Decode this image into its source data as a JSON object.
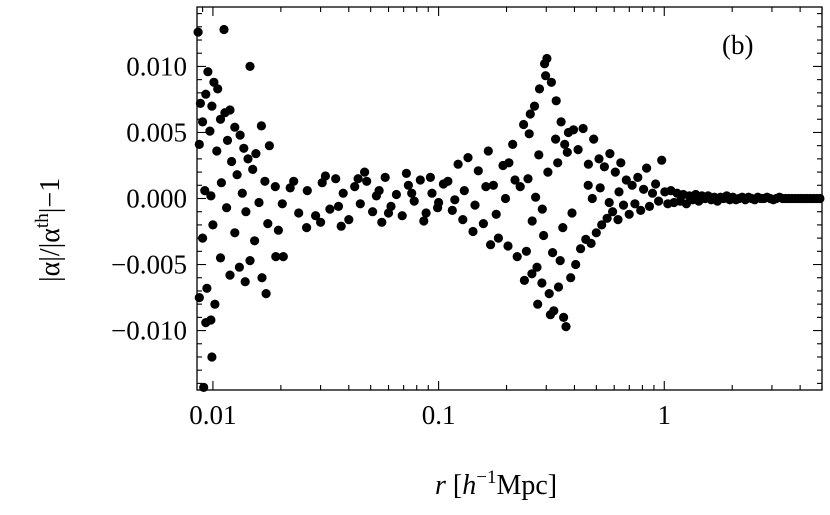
{
  "chart_data": {
    "type": "scatter",
    "panel_label": "(b)",
    "xscale": "log",
    "xlim": [
      0.0085,
      5.0
    ],
    "ylim": [
      -0.0145,
      0.0145
    ],
    "grid": false,
    "xlabel": {
      "var": "r",
      "pre": " [",
      "h": "h",
      "exp": "−1",
      "post": "Mpc]"
    },
    "ylabel": {
      "part1": "|α|/|α",
      "sup": "th",
      "part2": "|−1"
    },
    "x_ticks": [
      {
        "value": 0.01,
        "label": "0.01"
      },
      {
        "value": 0.1,
        "label": "0.1"
      },
      {
        "value": 1,
        "label": "1"
      }
    ],
    "y_ticks": [
      {
        "value": 0.01,
        "label": "0.010"
      },
      {
        "value": 0.005,
        "label": "0.005"
      },
      {
        "value": 0.0,
        "label": "0.000"
      },
      {
        "value": -0.005,
        "label": "−0.005"
      },
      {
        "value": -0.01,
        "label": "−0.010"
      }
    ],
    "series": [
      {
        "points": [
          [
            0.0086,
            0.0126
          ],
          [
            0.0112,
            0.0128
          ],
          [
            0.0095,
            0.0096
          ],
          [
            0.0101,
            0.0088
          ],
          [
            0.0146,
            0.01
          ],
          [
            0.0093,
            0.0079
          ],
          [
            0.0105,
            0.0083
          ],
          [
            0.0088,
            0.0072
          ],
          [
            0.0099,
            0.007
          ],
          [
            0.0113,
            0.0065
          ],
          [
            0.0119,
            0.0067
          ],
          [
            0.0108,
            0.006
          ],
          [
            0.0132,
            0.0048
          ],
          [
            0.0125,
            0.0054
          ],
          [
            0.009,
            0.0058
          ],
          [
            0.0097,
            0.0051
          ],
          [
            0.0164,
            0.0055
          ],
          [
            0.0178,
            0.004
          ],
          [
            0.0155,
            0.0034
          ],
          [
            0.0104,
            0.0036
          ],
          [
            0.0116,
            0.0044
          ],
          [
            0.0143,
            0.003
          ],
          [
            0.0137,
            0.0038
          ],
          [
            0.0087,
            0.0041
          ],
          [
            0.0121,
            0.0028
          ],
          [
            0.0092,
            0.0006
          ],
          [
            0.0109,
            0.0012
          ],
          [
            0.0128,
            0.0018
          ],
          [
            0.015,
            0.0022
          ],
          [
            0.017,
            0.0013
          ],
          [
            0.0098,
            0.0002
          ],
          [
            0.0135,
            0.0004
          ],
          [
            0.016,
            -0.0003
          ],
          [
            0.0189,
            0.0009
          ],
          [
            0.0203,
            -0.0004
          ],
          [
            0.022,
            0.0008
          ],
          [
            0.0115,
            -0.0007
          ],
          [
            0.014,
            -0.001
          ],
          [
            0.01,
            -0.002
          ],
          [
            0.0125,
            -0.0026
          ],
          [
            0.0153,
            -0.0032
          ],
          [
            0.0175,
            -0.0019
          ],
          [
            0.0195,
            -0.0024
          ],
          [
            0.009,
            -0.003
          ],
          [
            0.0108,
            -0.0045
          ],
          [
            0.0131,
            -0.0052
          ],
          [
            0.0146,
            -0.0047
          ],
          [
            0.0165,
            -0.006
          ],
          [
            0.0119,
            -0.0058
          ],
          [
            0.0094,
            -0.0068
          ],
          [
            0.0087,
            -0.0075
          ],
          [
            0.0102,
            -0.008
          ],
          [
            0.0139,
            -0.0063
          ],
          [
            0.0172,
            -0.0072
          ],
          [
            0.0098,
            -0.0092
          ],
          [
            0.0093,
            -0.0094
          ],
          [
            0.0099,
            -0.012
          ],
          [
            0.0091,
            -0.0143
          ],
          [
            0.0205,
            -0.0044
          ],
          [
            0.019,
            -0.0044
          ],
          [
            0.0228,
            0.0013
          ],
          [
            0.024,
            -0.0011
          ],
          [
            0.0262,
            0.0006
          ],
          [
            0.0285,
            -0.0013
          ],
          [
            0.0305,
            0.0012
          ],
          [
            0.033,
            -0.0008
          ],
          [
            0.035,
            0.0015
          ],
          [
            0.0378,
            0.0004
          ],
          [
            0.04,
            -0.0016
          ],
          [
            0.0425,
            0.0009
          ],
          [
            0.045,
            -0.0004
          ],
          [
            0.048,
            0.0013
          ],
          [
            0.051,
            -0.001
          ],
          [
            0.0545,
            0.0006
          ],
          [
            0.058,
            0.0016
          ],
          [
            0.0615,
            -0.0006
          ],
          [
            0.065,
            0.0003
          ],
          [
            0.069,
            -0.0013
          ],
          [
            0.0735,
            0.001
          ],
          [
            0.078,
            -0.0002
          ],
          [
            0.083,
            0.0014
          ],
          [
            0.088,
            -0.0011
          ],
          [
            0.0935,
            0.0004
          ],
          [
            0.099,
            -0.0007
          ],
          [
            0.105,
            0.0011
          ],
          [
            0.037,
            -0.0021
          ],
          [
            0.047,
            0.002
          ],
          [
            0.056,
            -0.0018
          ],
          [
            0.072,
            0.0019
          ],
          [
            0.086,
            -0.0017
          ],
          [
            0.026,
            -0.0022
          ],
          [
            0.03,
            -0.0018
          ],
          [
            0.0315,
            0.0017
          ],
          [
            0.036,
            -0.0006
          ],
          [
            0.044,
            0.0015
          ],
          [
            0.053,
            0.0002
          ],
          [
            0.06,
            -0.0011
          ],
          [
            0.076,
            0.0004
          ],
          [
            0.092,
            0.0016
          ],
          [
            0.1,
            -0.0003
          ],
          [
            0.11,
            0.0013
          ],
          [
            0.115,
            -0.0009
          ],
          [
            0.122,
            0.0026
          ],
          [
            0.128,
            -0.0016
          ],
          [
            0.135,
            0.0031
          ],
          [
            0.142,
            -0.0025
          ],
          [
            0.15,
            0.0021
          ],
          [
            0.158,
            -0.0019
          ],
          [
            0.166,
            0.0036
          ],
          [
            0.175,
            0.001
          ],
          [
            0.184,
            -0.003
          ],
          [
            0.193,
            0.0025
          ],
          [
            0.203,
            -0.0036
          ],
          [
            0.213,
            0.0041
          ],
          [
            0.223,
            -0.0044
          ],
          [
            0.118,
            -0.0001
          ],
          [
            0.13,
            0.0006
          ],
          [
            0.145,
            -0.0005
          ],
          [
            0.162,
            0.0009
          ],
          [
            0.18,
            -0.0012
          ],
          [
            0.198,
            0.0
          ],
          [
            0.218,
            0.0014
          ],
          [
            0.205,
            0.0027
          ],
          [
            0.17,
            -0.0035
          ],
          [
            0.23,
            0.0009
          ],
          [
            0.238,
            0.0056
          ],
          [
            0.245,
            -0.004
          ],
          [
            0.252,
            0.0049
          ],
          [
            0.259,
            -0.0057
          ],
          [
            0.266,
            0.007
          ],
          [
            0.273,
            -0.0052
          ],
          [
            0.28,
            0.0083
          ],
          [
            0.287,
            -0.0064
          ],
          [
            0.295,
            0.0102
          ],
          [
            0.302,
            0.0106
          ],
          [
            0.309,
            -0.0072
          ],
          [
            0.316,
            0.0088
          ],
          [
            0.324,
            -0.0085
          ],
          [
            0.332,
            0.0074
          ],
          [
            0.34,
            -0.0067
          ],
          [
            0.349,
            0.0058
          ],
          [
            0.358,
            -0.009
          ],
          [
            0.367,
            -0.0097
          ],
          [
            0.376,
            0.005
          ],
          [
            0.385,
            -0.006
          ],
          [
            0.249,
            0.0015
          ],
          [
            0.26,
            -0.0017
          ],
          [
            0.278,
            0.0033
          ],
          [
            0.292,
            -0.0028
          ],
          [
            0.305,
            0.002
          ],
          [
            0.32,
            -0.0041
          ],
          [
            0.337,
            0.0027
          ],
          [
            0.355,
            -0.0022
          ],
          [
            0.372,
            0.0035
          ],
          [
            0.39,
            -0.0011
          ],
          [
            0.24,
            -0.0062
          ],
          [
            0.255,
            0.0064
          ],
          [
            0.275,
            -0.008
          ],
          [
            0.298,
            0.0093
          ],
          [
            0.313,
            -0.0088
          ],
          [
            0.33,
            0.0045
          ],
          [
            0.346,
            -0.0047
          ],
          [
            0.362,
            0.0041
          ],
          [
            0.269,
            0.0001
          ],
          [
            0.288,
            -0.0008
          ],
          [
            0.396,
            0.0052
          ],
          [
            0.405,
            -0.005
          ],
          [
            0.415,
            0.0037
          ],
          [
            0.426,
            -0.0038
          ],
          [
            0.437,
            0.0053
          ],
          [
            0.449,
            -0.0031
          ],
          [
            0.461,
            0.0026
          ],
          [
            0.474,
            -0.0034
          ],
          [
            0.487,
            0.0045
          ],
          [
            0.5,
            -0.0026
          ],
          [
            0.514,
            0.003
          ],
          [
            0.528,
            -0.002
          ],
          [
            0.543,
            0.0024
          ],
          [
            0.558,
            -0.0015
          ],
          [
            0.574,
            0.0034
          ],
          [
            0.59,
            -0.001
          ],
          [
            0.607,
            0.002
          ],
          [
            0.624,
            -0.0016
          ],
          [
            0.642,
            0.0027
          ],
          [
            0.66,
            -0.0005
          ],
          [
            0.679,
            0.0014
          ],
          [
            0.699,
            -0.0012
          ],
          [
            0.72,
            0.001
          ],
          [
            0.741,
            -0.0004
          ],
          [
            0.763,
            0.0016
          ],
          [
            0.786,
            -0.0009
          ],
          [
            0.81,
            0.0007
          ],
          [
            0.835,
            0.0023
          ],
          [
            0.86,
            -0.0006
          ],
          [
            0.887,
            0.0004
          ],
          [
            0.915,
            0.0011
          ],
          [
            0.944,
            -0.0002
          ],
          [
            0.974,
            0.0029
          ],
          [
            1.005,
            0.0005
          ],
          [
            1.037,
            -0.0004
          ],
          [
            0.46,
            0.001
          ],
          [
            0.48,
            0.0
          ],
          [
            0.52,
            0.0008
          ],
          [
            0.57,
            -0.0003
          ],
          [
            0.63,
            0.0005
          ],
          [
            1.07,
            0.0006
          ],
          [
            1.104,
            -0.0003
          ],
          [
            1.14,
            0.0004
          ],
          [
            1.176,
            -0.0002
          ],
          [
            1.214,
            0.0003
          ],
          [
            1.253,
            -0.0004
          ],
          [
            1.293,
            0.0002
          ],
          [
            1.335,
            -0.0001
          ],
          [
            1.378,
            0.0003
          ],
          [
            1.422,
            -0.0002
          ],
          [
            1.468,
            0.0002
          ],
          [
            1.515,
            0.0
          ],
          [
            1.564,
            0.0002
          ],
          [
            1.614,
            -0.0001
          ],
          [
            1.666,
            0.0001
          ],
          [
            1.72,
            -0.0002
          ],
          [
            1.775,
            0.0001
          ],
          [
            1.832,
            0.0
          ],
          [
            1.891,
            0.0002
          ],
          [
            1.952,
            -0.0001
          ],
          [
            2.015,
            0.0001
          ],
          [
            2.08,
            -0.0001
          ],
          [
            2.147,
            0.0
          ],
          [
            2.216,
            0.0001
          ],
          [
            2.287,
            -0.0001
          ],
          [
            2.361,
            0.0001
          ],
          [
            2.437,
            0.0
          ],
          [
            2.515,
            -0.0001
          ],
          [
            2.596,
            0.0001
          ],
          [
            2.68,
            0.0
          ],
          [
            2.766,
            0.0
          ],
          [
            2.855,
            0.0001
          ],
          [
            2.947,
            0.0
          ],
          [
            3.042,
            -0.0001
          ],
          [
            3.14,
            0.0
          ],
          [
            3.241,
            0.0001
          ],
          [
            3.345,
            0.0
          ],
          [
            3.453,
            0.0
          ],
          [
            3.564,
            0.0
          ],
          [
            3.679,
            0.0
          ],
          [
            3.797,
            0.0
          ],
          [
            3.919,
            0.0
          ],
          [
            4.045,
            0.0
          ],
          [
            4.176,
            0.0
          ],
          [
            4.31,
            0.0
          ],
          [
            4.449,
            0.0
          ],
          [
            4.592,
            0.0
          ],
          [
            4.74,
            0.0
          ],
          [
            4.893,
            0.0
          ]
        ]
      }
    ]
  }
}
